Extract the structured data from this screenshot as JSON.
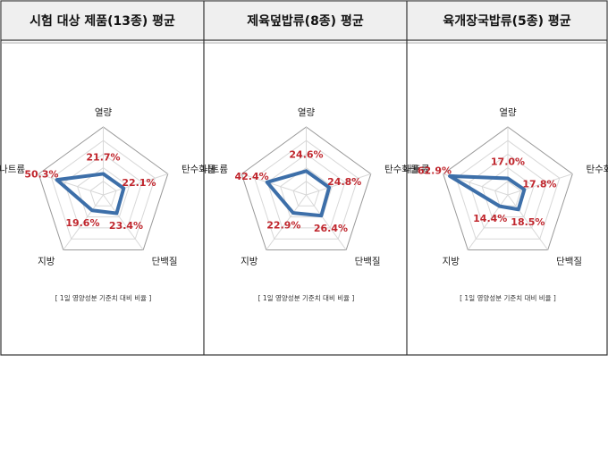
{
  "chart_data": [
    {
      "type": "radar",
      "title": "시험 대상 제품(13종) 평균",
      "categories": [
        "열량",
        "탄수화물",
        "단백질",
        "지방",
        "나트륨"
      ],
      "values": [
        21.7,
        22.1,
        23.4,
        19.6,
        50.3
      ],
      "value_labels": [
        "21.7%",
        "22.1%",
        "23.4%",
        "19.6%",
        "50.3%"
      ],
      "color": "#3d6fa9",
      "label_color": "#c0262d",
      "rlim": [
        0,
        70
      ],
      "note": "[ 1일 영양성분 기준치 대비 비율 ]"
    },
    {
      "type": "radar",
      "title": "제육덮밥류(8종) 평균",
      "categories": [
        "열량",
        "탄수화물",
        "단백질",
        "지방",
        "나트륨"
      ],
      "values": [
        24.6,
        24.8,
        26.4,
        22.9,
        42.4
      ],
      "value_labels": [
        "24.6%",
        "24.8%",
        "26.4%",
        "22.9%",
        "42.4%"
      ],
      "color": "#3d6fa9",
      "label_color": "#c0262d",
      "rlim": [
        0,
        70
      ],
      "note": "[ 1일 영양성분 기준치 대비 비율 ]"
    },
    {
      "type": "radar",
      "title": "육개장국밥류(5종) 평균",
      "categories": [
        "열량",
        "탄수화물",
        "단백질",
        "지방",
        "나트륨"
      ],
      "values": [
        17.0,
        17.8,
        18.5,
        14.4,
        62.9
      ],
      "value_labels": [
        "17.0%",
        "17.8%",
        "18.5%",
        "14.4%",
        "62.9%"
      ],
      "color": "#3d6fa9",
      "label_color": "#c0262d",
      "rlim": [
        0,
        70
      ],
      "note": "[ 1일 영양성분 기준치 대비 비율 ]"
    }
  ]
}
